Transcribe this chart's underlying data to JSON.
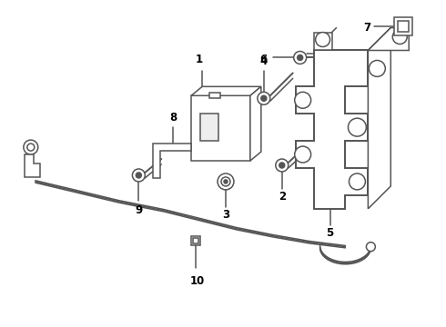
{
  "bg_color": "#ffffff",
  "line_color": "#555555",
  "text_color": "#000000",
  "lw": 1.1,
  "lw_thick": 1.4,
  "label_fs": 8.5
}
